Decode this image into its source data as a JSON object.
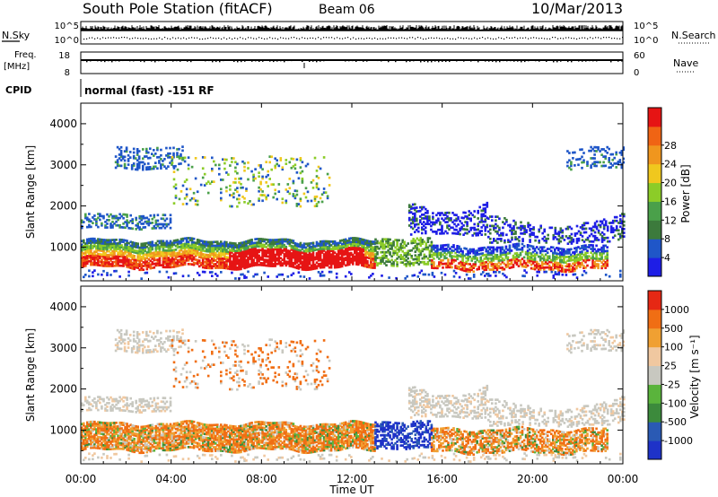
{
  "header": {
    "station": "South Pole Station (fitACF)",
    "beam": "Beam 06",
    "date": "10/Mar/2013"
  },
  "top_panels": {
    "nsky_label": "N.Sky",
    "nsearch_label": "N.Search",
    "noise_ticks": [
      "10^5",
      "10^0"
    ],
    "freq_label_1": "Freq.",
    "freq_label_2": "[MHz]",
    "freq_ticks": [
      "18",
      "8"
    ],
    "nave_label": "Nave",
    "nave_ticks": [
      "60",
      "0"
    ],
    "cpid_label": "CPID",
    "cpid_text": "normal (fast) -151 RF"
  },
  "chart_data": [
    {
      "type": "heatmap",
      "name": "power",
      "ylabel": "Slant Range [km]",
      "xlabel": "Time UT",
      "xlim": [
        "00:00",
        "24:00"
      ],
      "ylim": [
        180,
        4500
      ],
      "yticks": [
        "1000",
        "2000",
        "3000",
        "4000"
      ],
      "xticks": [
        "00:00",
        "04:00",
        "08:00",
        "12:00",
        "16:00",
        "20:00",
        "00:00"
      ],
      "colorbar": {
        "label": "Power [dB]",
        "ticks": [
          "4",
          "8",
          "12",
          "16",
          "20",
          "24",
          "28"
        ],
        "colors": [
          "#1e1ee6",
          "#1f56c8",
          "#3c7a3c",
          "#4aa04a",
          "#8ccc28",
          "#f0c81e",
          "#f0961e",
          "#f06414",
          "#e61414"
        ]
      }
    },
    {
      "type": "heatmap",
      "name": "velocity",
      "ylabel": "Slant Range [km]",
      "xlabel": "Time UT",
      "xlim": [
        "00:00",
        "24:00"
      ],
      "ylim": [
        180,
        4500
      ],
      "yticks": [
        "1000",
        "2000",
        "3000",
        "4000"
      ],
      "xticks": [
        "00:00",
        "04:00",
        "08:00",
        "12:00",
        "16:00",
        "20:00",
        "00:00"
      ],
      "colorbar": {
        "label": "Velocity [m s⁻¹]",
        "ticks": [
          "1000",
          "500",
          "100",
          "25",
          "-25",
          "-100",
          "-500",
          "-1000"
        ],
        "colors": [
          "#1e32c8",
          "#2a5ab4",
          "#3c8a3c",
          "#5ab43c",
          "#c8c8c0",
          "#f0c8a0",
          "#f0a032",
          "#f06e14",
          "#e62814"
        ]
      }
    }
  ]
}
